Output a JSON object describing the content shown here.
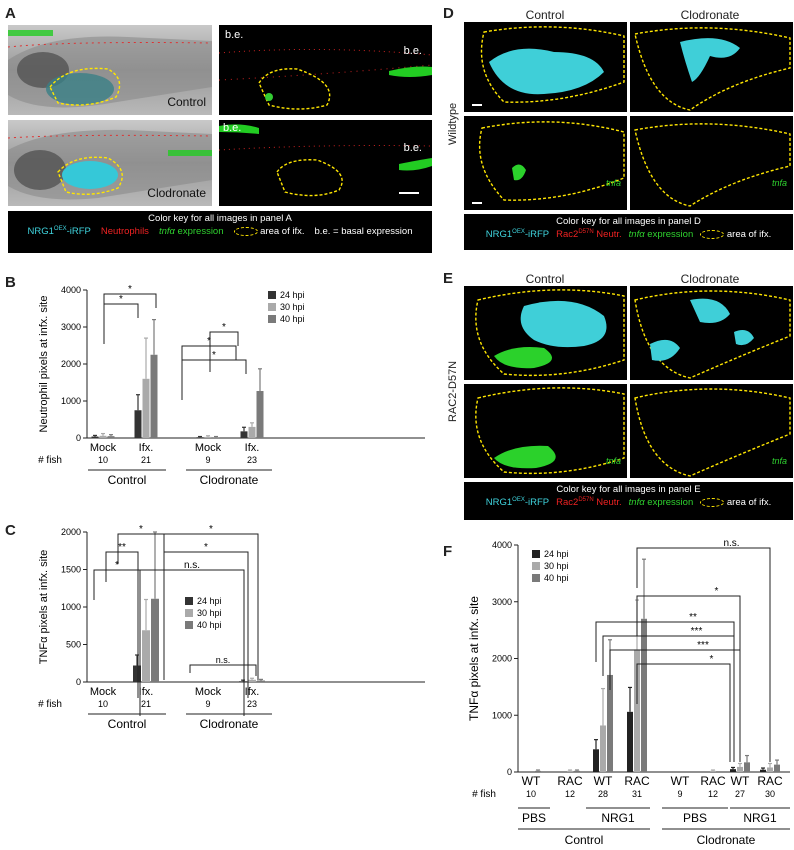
{
  "panels": {
    "A": "A",
    "B": "B",
    "C": "C",
    "D": "D",
    "E": "E",
    "F": "F"
  },
  "panelA": {
    "be": "b.e.",
    "control": "Control",
    "clodronate": "Clodronate",
    "key_title": "Color key for all images in panel A",
    "key_nrg": "NRG1",
    "key_oex": "OEX",
    "key_irfp": "-iRFP",
    "key_neut": "Neutrophils",
    "key_tnf": "tnfα",
    "key_expr": " expression",
    "key_area": "area of ifx.",
    "key_be": "b.e. = basal expression"
  },
  "panelD": {
    "control": "Control",
    "clodronate": "Clodronate",
    "row": "Wildtype",
    "tnfa": "tnfa",
    "key_title": "Color key for all images in panel D",
    "key_nrg": "NRG1",
    "key_oex": "OEX",
    "key_irfp": "-iRFP",
    "key_rac": "Rac2",
    "key_racsup": "D57N",
    "key_neut": " Neutr.",
    "key_tnf": "tnfα",
    "key_expr": " expression",
    "key_area": "area of ifx."
  },
  "panelE": {
    "control": "Control",
    "clodronate": "Clodronate",
    "row": "RAC2-D57N",
    "tnfa": "tnfa",
    "key_title": "Color key for all images in panel E",
    "key_nrg": "NRG1",
    "key_oex": "OEX",
    "key_irfp": "-iRFP",
    "key_rac": "Rac2",
    "key_racsup": "D57N",
    "key_neut": " Neutr.",
    "key_tnf": "tnfα",
    "key_expr": " expression",
    "key_area": "area of ifx."
  },
  "chart_data": [
    {
      "id": "B",
      "type": "bar",
      "ylabel": "Neutrophil pixels at infx. site",
      "ylim": [
        0,
        4000
      ],
      "yticks": [
        0,
        1000,
        2000,
        3000,
        4000
      ],
      "series_names": [
        "24 hpi",
        "30 hpi",
        "40 hpi"
      ],
      "colors": [
        "#333333",
        "#aaaaaa",
        "#7a7a7a"
      ],
      "groups": [
        {
          "label": "Mock",
          "n": "10",
          "values": [
            40,
            60,
            50
          ],
          "errors": [
            30,
            60,
            40
          ]
        },
        {
          "label": "Ifx.",
          "n": "21",
          "values": [
            750,
            1600,
            2250
          ],
          "errors": [
            420,
            1100,
            950
          ]
        },
        {
          "label": "Mock",
          "n": "9",
          "values": [
            20,
            30,
            20
          ],
          "errors": [
            20,
            30,
            20
          ]
        },
        {
          "label": "Ifx.",
          "n": "23",
          "values": [
            180,
            300,
            1270
          ],
          "errors": [
            110,
            110,
            600
          ]
        }
      ],
      "fish_label": "# fish",
      "conditions": [
        "Control",
        "Clodronate"
      ],
      "significance": [
        "*",
        "*",
        "*",
        "*",
        "*"
      ]
    },
    {
      "id": "C",
      "type": "bar",
      "ylabel": "TNFα pixels at infx. site",
      "ylim": [
        0,
        2000
      ],
      "yticks": [
        0,
        500,
        1000,
        1500,
        2000
      ],
      "series_names": [
        "24 hpi",
        "30 hpi",
        "40 hpi"
      ],
      "colors": [
        "#333333",
        "#aaaaaa",
        "#7a7a7a"
      ],
      "groups": [
        {
          "label": "Mock",
          "n": "10",
          "values": [
            0,
            0,
            0
          ],
          "errors": [
            0,
            0,
            0
          ]
        },
        {
          "label": "Ifx.",
          "n": "21",
          "values": [
            220,
            690,
            1110
          ],
          "errors": [
            140,
            410,
            890
          ]
        },
        {
          "label": "Mock",
          "n": "9",
          "values": [
            0,
            0,
            0
          ],
          "errors": [
            0,
            0,
            0
          ]
        },
        {
          "label": "Ifx.",
          "n": "23",
          "values": [
            10,
            30,
            20
          ],
          "errors": [
            15,
            20,
            15
          ]
        }
      ],
      "fish_label": "# fish",
      "conditions": [
        "Control",
        "Clodronate"
      ],
      "significance": [
        "*",
        "*",
        "**",
        "*",
        "*",
        "n.s.",
        "n.s."
      ]
    },
    {
      "id": "F",
      "type": "bar",
      "ylabel": "TNFα pixels at infx. site",
      "ylim": [
        0,
        4000
      ],
      "yticks": [
        0,
        1000,
        2000,
        3000,
        4000
      ],
      "series_names": [
        "24 hpi",
        "30 hpi",
        "40 hpi"
      ],
      "colors": [
        "#222222",
        "#aaaaaa",
        "#7a7a7a"
      ],
      "groups": [
        {
          "label": "WT",
          "n": "10",
          "values": [
            0,
            0,
            20
          ],
          "errors": [
            0,
            0,
            15
          ]
        },
        {
          "label": "RAC",
          "n": "12",
          "values": [
            0,
            20,
            20
          ],
          "errors": [
            0,
            15,
            15
          ]
        },
        {
          "label": "WT",
          "n": "28",
          "values": [
            400,
            820,
            1710
          ],
          "errors": [
            170,
            650,
            620
          ]
        },
        {
          "label": "RAC",
          "n": "31",
          "values": [
            1060,
            2160,
            2700
          ],
          "errors": [
            430,
            870,
            1050
          ]
        },
        {
          "label": "WT",
          "n": "9",
          "values": [
            0,
            0,
            0
          ],
          "errors": [
            0,
            0,
            0
          ]
        },
        {
          "label": "RAC",
          "n": "12",
          "values": [
            0,
            20,
            0
          ],
          "errors": [
            0,
            15,
            0
          ]
        },
        {
          "label": "WT",
          "n": "27",
          "values": [
            50,
            90,
            170
          ],
          "errors": [
            30,
            60,
            120
          ]
        },
        {
          "label": "RAC",
          "n": "30",
          "values": [
            40,
            80,
            130
          ],
          "errors": [
            30,
            70,
            80
          ]
        }
      ],
      "fish_label": "# fish",
      "subconditions": [
        "PBS",
        "NRG1",
        "PBS",
        "NRG1"
      ],
      "conditions": [
        "Control",
        "Clodronate"
      ],
      "significance": [
        "n.s.",
        "*",
        "**",
        "***",
        "***",
        "*"
      ]
    }
  ]
}
